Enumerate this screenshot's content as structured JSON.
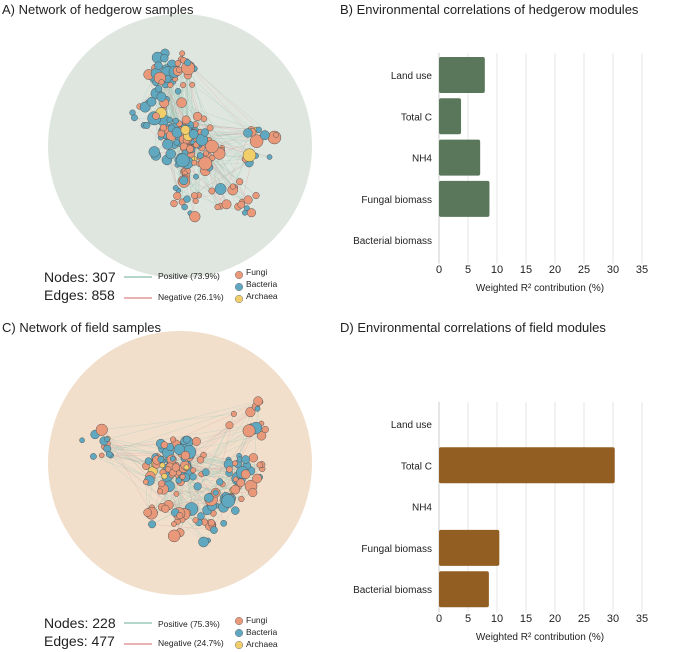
{
  "panels": {
    "a": {
      "title": "A)  Network of hedgerow samples",
      "nodes": "Nodes: 307",
      "edges": "Edges: 858",
      "positive": "Positive (73.9%)",
      "negative": "Negative (26.1%)",
      "bg_color": "#dfe6df"
    },
    "c": {
      "title": "C)  Network of field samples",
      "nodes": "Nodes: 228",
      "edges": "Edges: 477",
      "positive": "Positive (75.3%)",
      "negative": "Negative (24.7%)",
      "bg_color": "#f1dfcc"
    }
  },
  "legend": {
    "fungi": "Fungi",
    "bacteria": "Bacteria",
    "archaea": "Archaea",
    "colors": {
      "fungi": "#e9997a",
      "bacteria": "#5fa8c0",
      "archaea": "#f0cf6a",
      "positive": "#9cc8b8",
      "negative": "#e39a9a"
    }
  },
  "chart_data": [
    {
      "type": "bar",
      "orientation": "horizontal",
      "title": "B)  Environmental correlations of hedgerow modules",
      "categories": [
        "Land use",
        "Total C",
        "NH4",
        "Fungal biomass",
        "Bacterial biomass"
      ],
      "values": [
        7.9,
        3.8,
        7.1,
        8.7,
        0
      ],
      "xlabel": "Weighted R² contribution (%)",
      "xlim": [
        0,
        35
      ],
      "ticks": [
        "0",
        "5",
        "10",
        "15",
        "20",
        "25",
        "30",
        "35"
      ],
      "grid": true,
      "color": "#5a775c"
    },
    {
      "type": "bar",
      "orientation": "horizontal",
      "title": "D)  Environmental correlations of field modules",
      "categories": [
        "Land use",
        "Total C",
        "NH4",
        "Fungal biomass",
        "Bacterial biomass"
      ],
      "values": [
        0,
        30.3,
        0,
        10.4,
        8.6
      ],
      "xlabel": "Weighted R² contribution (%)",
      "xlim": [
        0,
        35
      ],
      "ticks": [
        "0",
        "5",
        "10",
        "15",
        "20",
        "25",
        "30",
        "35"
      ],
      "grid": true,
      "color": "#925e22"
    }
  ]
}
